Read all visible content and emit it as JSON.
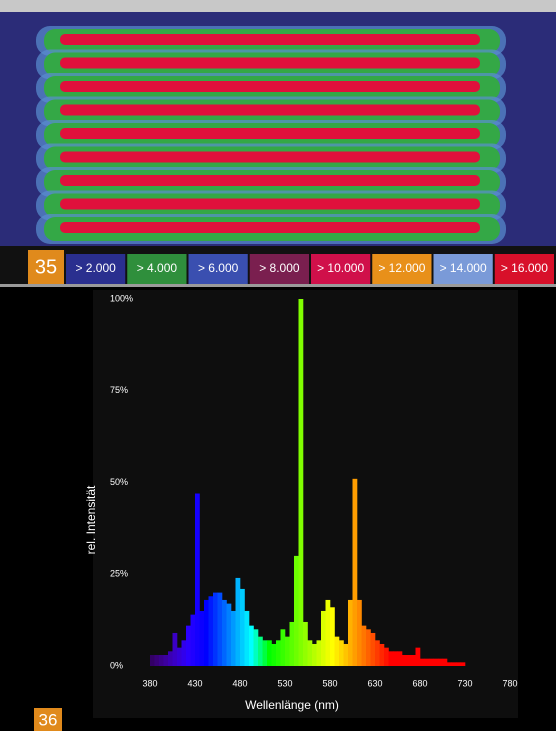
{
  "figure_35": {
    "number": "35",
    "legend": [
      {
        "label": "> 2.000",
        "color": "#2a2f8f"
      },
      {
        "label": "> 4.000",
        "color": "#2f8f3c"
      },
      {
        "label": "> 6.000",
        "color": "#3a4fb0"
      },
      {
        "label": "> 8.000",
        "color": "#7a1f4f"
      },
      {
        "label": "> 10.000",
        "color": "#d0104a"
      },
      {
        "label": "> 12.000",
        "color": "#e8901a"
      },
      {
        "label": "> 14.000",
        "color": "#7a9ad8"
      },
      {
        "label": "> 16.000",
        "color": "#d8102a"
      }
    ]
  },
  "figure_36": {
    "number": "36"
  },
  "chart_data": {
    "type": "bar",
    "x_label": "Wellenlänge (nm)",
    "y_label": "rel. Intensität",
    "x": [
      380,
      385,
      390,
      395,
      400,
      405,
      410,
      415,
      420,
      425,
      430,
      435,
      440,
      445,
      450,
      455,
      460,
      465,
      470,
      475,
      480,
      485,
      490,
      495,
      500,
      505,
      510,
      515,
      520,
      525,
      530,
      535,
      540,
      545,
      550,
      555,
      560,
      565,
      570,
      575,
      580,
      585,
      590,
      595,
      600,
      605,
      610,
      615,
      620,
      625,
      630,
      635,
      640,
      645,
      650,
      655,
      660,
      665,
      670,
      675,
      680,
      685,
      690,
      695,
      700,
      705,
      710,
      715,
      720,
      725
    ],
    "values": [
      3,
      3,
      3,
      3,
      4,
      9,
      5,
      7,
      11,
      14,
      47,
      15,
      18,
      19,
      20,
      20,
      18,
      17,
      15,
      24,
      21,
      15,
      11,
      10,
      8,
      7,
      7,
      6,
      7,
      10,
      8,
      12,
      30,
      100,
      12,
      7,
      6,
      7,
      15,
      18,
      16,
      8,
      7,
      6,
      18,
      51,
      18,
      11,
      10,
      9,
      7,
      6,
      5,
      4,
      4,
      4,
      3,
      3,
      3,
      5,
      2,
      2,
      2,
      2,
      2,
      2,
      1,
      1,
      1,
      1
    ],
    "xlim": [
      380,
      780
    ],
    "xticks": [
      380,
      430,
      480,
      530,
      580,
      630,
      680,
      730,
      780
    ],
    "ylim": [
      0,
      100
    ],
    "yticks": [
      {
        "value": 0,
        "label": "0%"
      },
      {
        "value": 25,
        "label": "25%"
      },
      {
        "value": 50,
        "label": "50%"
      },
      {
        "value": 75,
        "label": "75%"
      },
      {
        "value": 100,
        "label": "100%"
      }
    ]
  }
}
